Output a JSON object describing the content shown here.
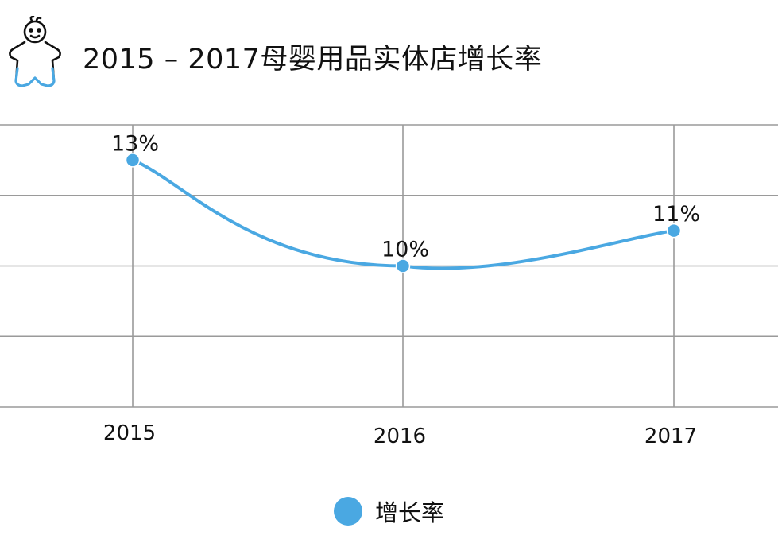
{
  "title": "2015 – 2017母婴用品实体店增长率",
  "icon": "baby-icon",
  "colors": {
    "line": "#4aa8e2",
    "grid": "#9a9a9a",
    "icon": "#4aa8e2"
  },
  "chart_data": {
    "type": "line",
    "title": "2015 – 2017母婴用品实体店增长率",
    "categories": [
      "2015",
      "2016",
      "2017"
    ],
    "series": [
      {
        "name": "增长率",
        "values": [
          13,
          10,
          11
        ],
        "labels": [
          "13%",
          "10%",
          "11%"
        ]
      }
    ],
    "ylim": [
      6,
      14
    ],
    "grid": true,
    "legend": "bottom-center",
    "smooth": true
  }
}
